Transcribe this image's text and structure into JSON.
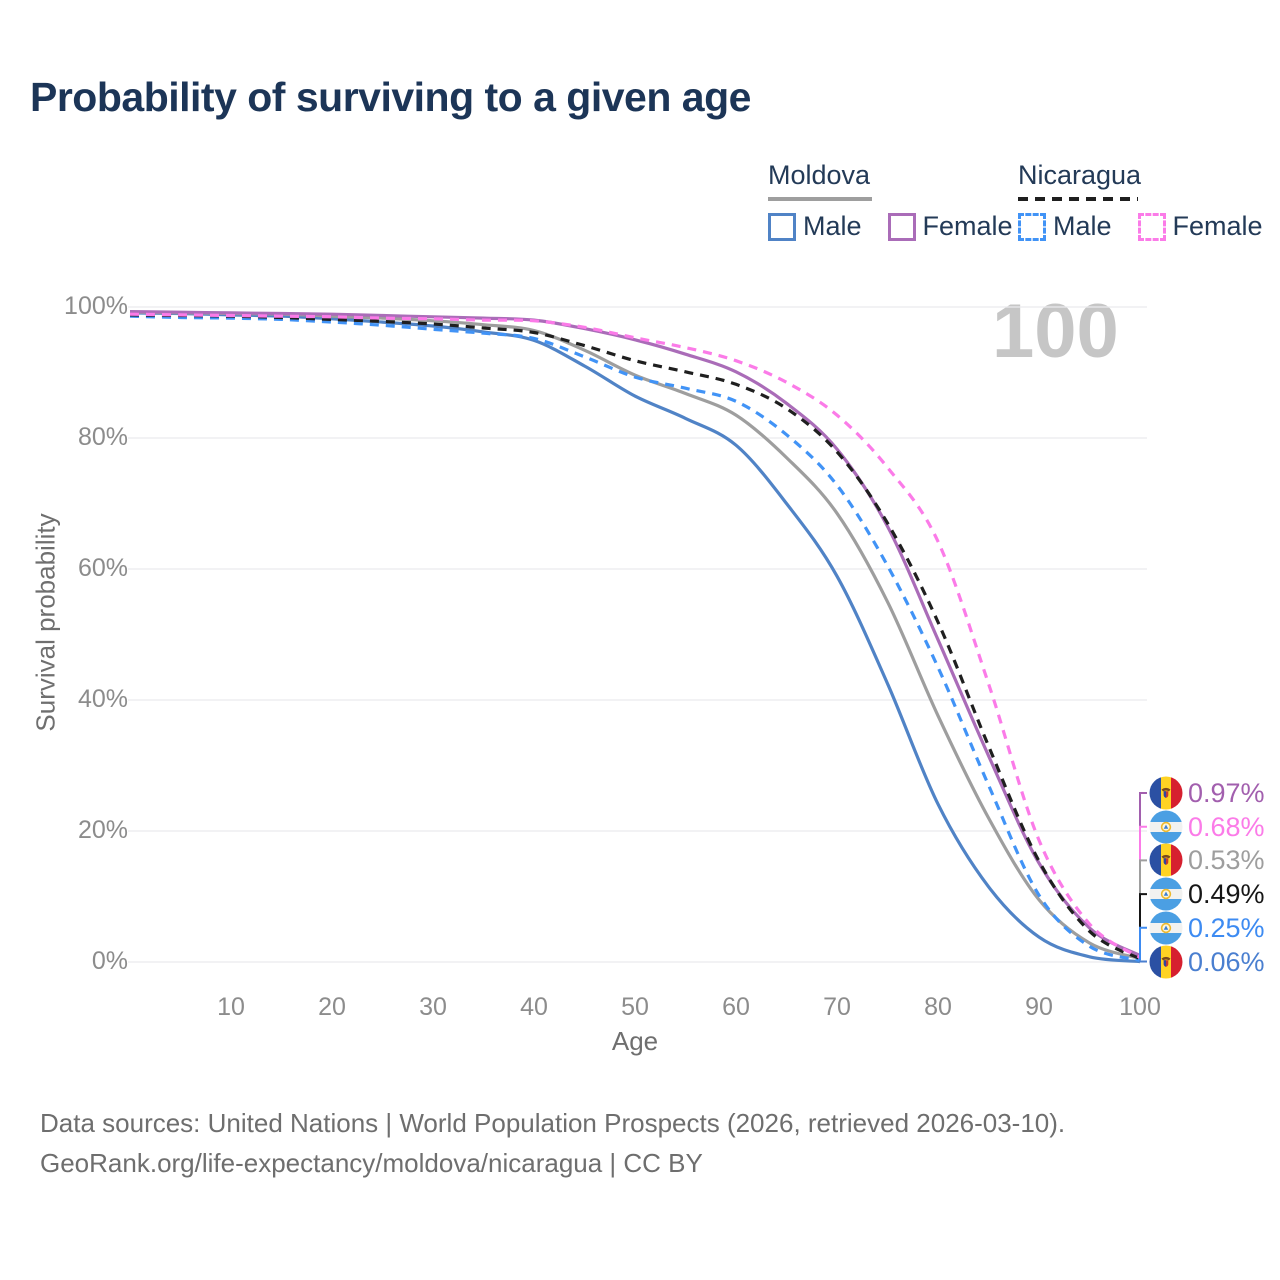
{
  "title": "Probability of surviving to a given age",
  "watermark": "100",
  "legend": {
    "groups": [
      {
        "label": "Moldova",
        "line_style": "solid",
        "underline_color": "#9e9e9e",
        "items": [
          {
            "label": "Male",
            "color": "#5083c6"
          },
          {
            "label": "Female",
            "color": "#aa6cb8"
          }
        ]
      },
      {
        "label": "Nicaragua",
        "line_style": "dashed",
        "underline_color": "#1f1f1f",
        "items": [
          {
            "label": "Male",
            "color": "#4193f6"
          },
          {
            "label": "Female",
            "color": "#fb7be8"
          }
        ]
      }
    ]
  },
  "chart_data": {
    "type": "line",
    "title": "Probability of surviving to a given age",
    "xlabel": "Age",
    "ylabel": "Survival probability",
    "xlim": [
      0,
      100
    ],
    "ylim": [
      0,
      100
    ],
    "grid": "horizontal",
    "x_ticks": [
      10,
      20,
      30,
      40,
      50,
      60,
      70,
      80,
      90,
      100
    ],
    "y_ticks": [
      "0%",
      "20%",
      "40%",
      "60%",
      "80%",
      "100%"
    ],
    "y_tick_values": [
      0,
      20,
      40,
      60,
      80,
      100
    ],
    "x": [
      0,
      5,
      10,
      15,
      20,
      25,
      30,
      35,
      40,
      45,
      50,
      55,
      60,
      65,
      70,
      75,
      80,
      85,
      90,
      95,
      100
    ],
    "series": [
      {
        "name": "Moldova Male",
        "key": "moldova_male",
        "country": "moldova",
        "sex": "male",
        "color": "#5083c6",
        "dash": false,
        "values": [
          99.1,
          99.0,
          98.8,
          98.6,
          98.2,
          97.7,
          97.1,
          96.2,
          94.9,
          91.0,
          86.4,
          83.0,
          78.9,
          70.0,
          58.9,
          42.5,
          24.1,
          11.5,
          3.8,
          0.8,
          0.06
        ]
      },
      {
        "name": "Moldova",
        "key": "moldova_total",
        "country": "moldova",
        "sex": "both",
        "color": "#9e9e9e",
        "dash": false,
        "values": [
          99.2,
          99.1,
          99.0,
          98.9,
          98.6,
          98.3,
          97.9,
          97.3,
          96.4,
          93.4,
          89.6,
          86.8,
          83.5,
          77.0,
          68.5,
          55.0,
          37.6,
          22.0,
          9.5,
          2.9,
          0.53
        ]
      },
      {
        "name": "Moldova Female",
        "key": "moldova_female",
        "country": "moldova",
        "sex": "female",
        "color": "#aa6cb8",
        "dash": false,
        "values": [
          99.3,
          99.2,
          99.1,
          99.0,
          98.9,
          98.7,
          98.5,
          98.3,
          98.0,
          96.7,
          95.0,
          92.8,
          90.1,
          85.3,
          78.3,
          66.5,
          49.2,
          31.5,
          15.1,
          5.2,
          0.97
        ]
      },
      {
        "name": "Nicaragua Male",
        "key": "nicaragua_male",
        "country": "nicaragua",
        "sex": "male",
        "color": "#4193f6",
        "dash": true,
        "values": [
          98.6,
          98.4,
          98.3,
          98.1,
          97.7,
          97.2,
          96.6,
          96.0,
          95.2,
          92.4,
          89.3,
          87.6,
          85.6,
          80.5,
          72.8,
          60.5,
          45.0,
          27.0,
          10.2,
          2.4,
          0.25
        ]
      },
      {
        "name": "Nicaragua",
        "key": "nicaragua_total",
        "country": "nicaragua",
        "sex": "both",
        "color": "#1f1f1f",
        "dash": true,
        "values": [
          98.8,
          98.7,
          98.6,
          98.4,
          98.1,
          97.8,
          97.4,
          96.8,
          96.1,
          94.1,
          91.8,
          90.1,
          88.2,
          84.5,
          77.9,
          67.0,
          51.9,
          33.0,
          15.4,
          4.7,
          0.49
        ]
      },
      {
        "name": "Nicaragua Female",
        "key": "nicaragua_female",
        "country": "nicaragua",
        "sex": "female",
        "color": "#fb7be8",
        "dash": true,
        "values": [
          98.9,
          98.8,
          98.7,
          98.6,
          98.5,
          98.3,
          98.2,
          98.0,
          97.9,
          96.9,
          95.3,
          93.8,
          91.8,
          88.5,
          83.5,
          75.5,
          64.2,
          42.5,
          18.6,
          5.8,
          0.68
        ]
      }
    ]
  },
  "end_labels": [
    {
      "country": "moldova",
      "series": "moldova_female",
      "value": "0.97%",
      "color": "#a25fae"
    },
    {
      "country": "nicaragua",
      "series": "nicaragua_female",
      "value": "0.68%",
      "color": "#fb7be8"
    },
    {
      "country": "moldova",
      "series": "moldova_total",
      "value": "0.53%",
      "color": "#9e9e9e"
    },
    {
      "country": "nicaragua",
      "series": "nicaragua_total",
      "value": "0.49%",
      "color": "#161616"
    },
    {
      "country": "nicaragua",
      "series": "nicaragua_male",
      "value": "0.25%",
      "color": "#3d8bf2"
    },
    {
      "country": "moldova",
      "series": "moldova_male",
      "value": "0.06%",
      "color": "#4a7fd0"
    }
  ],
  "footer": {
    "line1": "Data sources: United Nations | World Population Prospects (2026, retrieved 2026-03-10).",
    "line2": "GeoRank.org/life-expectancy/moldova/nicaragua | CC BY"
  }
}
